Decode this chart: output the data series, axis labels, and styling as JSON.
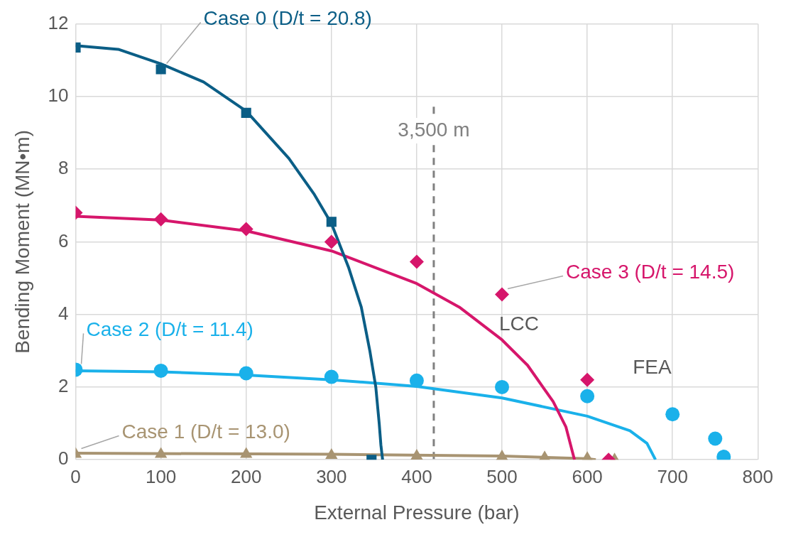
{
  "chart_data": {
    "type": "scatter",
    "xlabel": "External Pressure (bar)",
    "ylabel": "Bending Moment (MN•m)",
    "xlim": [
      0,
      800
    ],
    "xticks": [
      0,
      100,
      200,
      300,
      400,
      500,
      600,
      700,
      800
    ],
    "ylim": [
      0,
      12
    ],
    "yticks": [
      0,
      2,
      4,
      6,
      8,
      10,
      12
    ],
    "grid": true,
    "legend": false,
    "series": [
      {
        "type": "line",
        "color": "#0b5e86",
        "marker": "none",
        "x": [
          0,
          50,
          100,
          150,
          200,
          250,
          280,
          300,
          320,
          335,
          345,
          352,
          356,
          358,
          360
        ],
        "values": [
          11.4,
          11.3,
          10.9,
          10.4,
          9.6,
          8.3,
          7.3,
          6.5,
          5.3,
          4.2,
          3.0,
          2.0,
          1.0,
          0.4,
          0
        ]
      },
      {
        "type": "line",
        "color": "#d6166b",
        "marker": "none",
        "x": [
          0,
          100,
          200,
          300,
          400,
          450,
          500,
          530,
          560,
          575,
          585
        ],
        "values": [
          6.7,
          6.6,
          6.3,
          5.75,
          4.85,
          4.2,
          3.3,
          2.6,
          1.6,
          0.9,
          0
        ]
      },
      {
        "type": "line",
        "color": "#1ab1ea",
        "marker": "none",
        "x": [
          0,
          100,
          200,
          300,
          400,
          500,
          600,
          650,
          670,
          680
        ],
        "values": [
          2.45,
          2.42,
          2.33,
          2.2,
          2.02,
          1.7,
          1.2,
          0.8,
          0.45,
          0
        ]
      },
      {
        "type": "line",
        "color": "#a89472",
        "marker": "none",
        "x": [
          0,
          300,
          500,
          600,
          610
        ],
        "values": [
          0.18,
          0.15,
          0.1,
          0.03,
          0
        ]
      },
      {
        "name": "Case 0 (D/t = 20.8)",
        "color": "#0b5e86",
        "marker": "square",
        "x": [
          0,
          100,
          200,
          300,
          347
        ],
        "values": [
          11.35,
          10.75,
          9.55,
          6.55,
          0
        ]
      },
      {
        "name": "Case 3 (D/t = 14.5)",
        "color": "#d6166b",
        "marker": "diamond",
        "x": [
          0,
          100,
          200,
          300,
          400,
          500,
          600,
          625
        ],
        "values": [
          6.8,
          6.62,
          6.35,
          6.0,
          5.45,
          4.55,
          2.2,
          0
        ]
      },
      {
        "name": "Case 2 (D/t = 11.4)",
        "color": "#1ab1ea",
        "marker": "circle",
        "x": [
          0,
          100,
          200,
          300,
          400,
          500,
          600,
          700,
          750,
          760
        ],
        "values": [
          2.48,
          2.45,
          2.38,
          2.28,
          2.18,
          2.0,
          1.75,
          1.25,
          0.58,
          0.08
        ]
      },
      {
        "name": "Case 1 (D/t = 13.0)",
        "color": "#a89472",
        "marker": "triangle",
        "x": [
          0,
          100,
          200,
          300,
          400,
          500,
          550,
          600,
          632
        ],
        "values": [
          0.15,
          0.15,
          0.15,
          0.12,
          0.1,
          0.08,
          0.06,
          0.04,
          0
        ]
      }
    ],
    "ref_lines": [
      {
        "axis": "x",
        "value": 420,
        "label": "3,500 m",
        "color": "#808080",
        "line_style": "dashed"
      }
    ],
    "annotations": [
      "LCC",
      "FEA"
    ]
  }
}
